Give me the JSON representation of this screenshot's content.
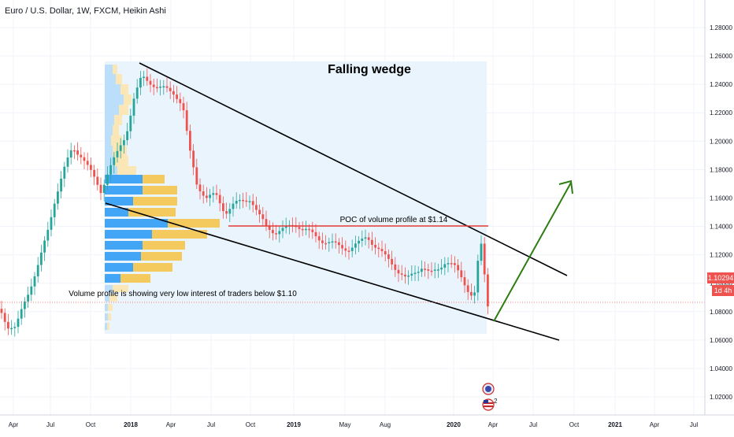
{
  "header": {
    "symbol_title": "Euro / U.S. Dollar, 1W, FXCM, Heikin Ashi"
  },
  "colors": {
    "bull": "#26a69a",
    "bear": "#ef5350",
    "profile_blue": "#42a5f5",
    "profile_blue_light": "#bbdefb",
    "profile_yellow": "#f4c95d",
    "profile_yellow_light": "#fbe7b5",
    "poc_line": "#e53935",
    "wedge": "#000000",
    "arrow": "#2e7d12",
    "price_badge": "#ef5350",
    "range_bg": "#e3f2fd"
  },
  "chart_data": {
    "type": "candlestick",
    "price_axis": {
      "min": 1.0,
      "max": 1.3,
      "tick_labels": [
        "1.28000",
        "1.26000",
        "1.24000",
        "1.22000",
        "1.20000",
        "1.18000",
        "1.16000",
        "1.14000",
        "1.12000",
        "1.10000",
        "1.08000",
        "1.06000",
        "1.04000",
        "1.02000"
      ],
      "tick_values": [
        1.28,
        1.26,
        1.24,
        1.22,
        1.2,
        1.18,
        1.16,
        1.14,
        1.12,
        1.1,
        1.08,
        1.06,
        1.04,
        1.02
      ]
    },
    "time_axis": {
      "labels": [
        "Apr",
        "Jul",
        "Oct",
        "2018",
        "Apr",
        "Jul",
        "Oct",
        "2019",
        "May",
        "Aug",
        "2020",
        "Apr",
        "Jul",
        "Oct",
        "2021",
        "Apr",
        "Jul"
      ]
    },
    "current_price": "1.10294",
    "countdown": "1d 4h",
    "annotations": {
      "pattern_title": "Falling wedge",
      "poc_label": "POC of volume profile at $1.14",
      "low_interest_note": "Volume profile is showing very low interest of traders below $1.10"
    },
    "poc_price": 1.14,
    "badge_count": "2"
  }
}
